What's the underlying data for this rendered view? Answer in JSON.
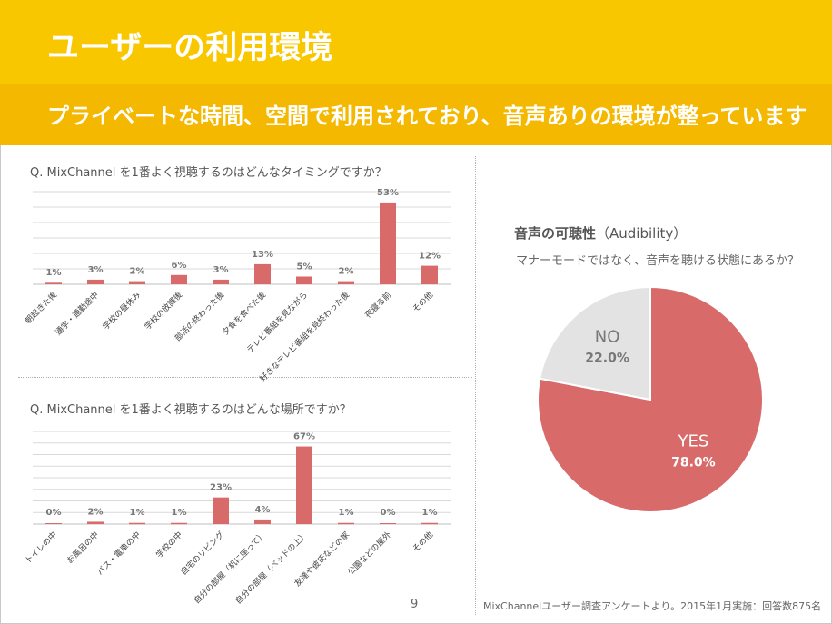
{
  "header": {
    "title": "ユーザーの利用環境",
    "subtitle": "プライベートな時間、空間で利用されており、音声ありの環境が整っています"
  },
  "colors": {
    "accent": "#f8c700",
    "bar": "#d96a6a",
    "pie_yes": "#d96a6a",
    "pie_no": "#e3e3e3"
  },
  "chart_data": [
    {
      "type": "bar",
      "title": "Q. MixChannel を1番よく視聴するのはどんなタイミングですか？",
      "categories": [
        "朝起きた後",
        "通学・通勤途中",
        "学校の昼休み",
        "学校の放課後",
        "部活の終わった後",
        "夕食を食べた後",
        "テレビ番組を見ながら",
        "好きなテレビ番組を見終わった後",
        "夜寝る前",
        "その他"
      ],
      "values": [
        1,
        3,
        2,
        6,
        3,
        13,
        5,
        2,
        53,
        12
      ],
      "data_labels": [
        "1%",
        "3%",
        "2%",
        "6%",
        "3%",
        "13%",
        "5%",
        "2%",
        "53%",
        "12%"
      ],
      "unit": "%",
      "ylim": [
        0,
        60
      ],
      "grid": true
    },
    {
      "type": "bar",
      "title": "Q. MixChannel を1番よく視聴するのはどんな場所ですか？",
      "categories": [
        "トイレの中",
        "お風呂の中",
        "バス・電車の中",
        "学校の中",
        "自宅のリビング",
        "自分の部屋（机に座って）",
        "自分の部屋（ベッドの上）",
        "友達や彼氏などの家",
        "公園などの屋外",
        "その他"
      ],
      "values": [
        0,
        2,
        1,
        1,
        23,
        4,
        67,
        1,
        0,
        1
      ],
      "data_labels": [
        "0%",
        "2%",
        "1%",
        "1%",
        "23%",
        "4%",
        "67%",
        "1%",
        "0%",
        "1%"
      ],
      "unit": "%",
      "ylim": [
        0,
        80
      ],
      "grid": true
    },
    {
      "type": "pie",
      "title": "音声の可聴性",
      "title_sub": "（Audibility）",
      "subtitle": "マナーモードではなく、音声を聴ける状態にあるか？",
      "slices": [
        {
          "label": "YES",
          "value": 78.0,
          "value_label": "78.0%"
        },
        {
          "label": "NO",
          "value": 22.0,
          "value_label": "22.0%"
        }
      ]
    }
  ],
  "footer": {
    "page_number": "9",
    "source": "MixChannelユーザー調査アンケートより。2015年1月実施：回答数875名"
  }
}
